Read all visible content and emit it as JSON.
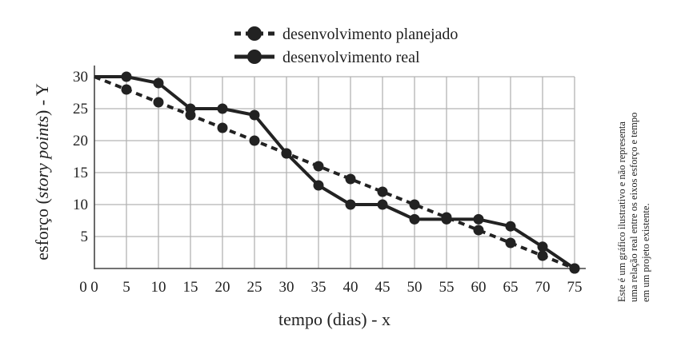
{
  "chart_data": {
    "type": "line",
    "xlabel": "tempo (dias) - x",
    "ylabel_prefix": "esforço (",
    "ylabel_italic": "story points",
    "ylabel_suffix": ") - Y",
    "xlim": [
      0,
      75
    ],
    "ylim": [
      0,
      30
    ],
    "x_ticks": [
      0,
      5,
      10,
      15,
      20,
      25,
      30,
      35,
      40,
      45,
      50,
      55,
      60,
      65,
      70,
      75
    ],
    "y_ticks": [
      5,
      10,
      15,
      20,
      25,
      30
    ],
    "y_origin_label": "0",
    "grid": true,
    "legend_position": "top",
    "series": [
      {
        "name": "desenvolvimento planejado",
        "style": "dashed",
        "color": "#222222",
        "points": [
          [
            0,
            30
          ],
          [
            5,
            28
          ],
          [
            10,
            26
          ],
          [
            15,
            24
          ],
          [
            20,
            22
          ],
          [
            25,
            20
          ],
          [
            30,
            18
          ],
          [
            35,
            16
          ],
          [
            40,
            14
          ],
          [
            45,
            12
          ],
          [
            50,
            10
          ],
          [
            55,
            8
          ],
          [
            60,
            6
          ],
          [
            65,
            4
          ],
          [
            70,
            2
          ],
          [
            75,
            0
          ]
        ],
        "marker_x": [
          5,
          10,
          15,
          20,
          25,
          30,
          35,
          40,
          45,
          50,
          55,
          60,
          65,
          70,
          75
        ]
      },
      {
        "name": "desenvolvimento real",
        "style": "solid",
        "color": "#222222",
        "points": [
          [
            0,
            30
          ],
          [
            5,
            30
          ],
          [
            10,
            29
          ],
          [
            15,
            25
          ],
          [
            20,
            25
          ],
          [
            25,
            24
          ],
          [
            30,
            18
          ],
          [
            35,
            13
          ],
          [
            40,
            10
          ],
          [
            45,
            10
          ],
          [
            50,
            7.7
          ],
          [
            55,
            7.7
          ],
          [
            60,
            7.7
          ],
          [
            65,
            6.6
          ],
          [
            70,
            3.4
          ],
          [
            75,
            0
          ]
        ],
        "marker_x": [
          5,
          10,
          15,
          20,
          25,
          30,
          35,
          40,
          45,
          50,
          55,
          60,
          65,
          70,
          75
        ]
      }
    ]
  },
  "note_lines": [
    "Este é um gráfico ilustrativo e não representa",
    "uma relação real entre os eixos esforço e tempo",
    "em um projeto existente."
  ]
}
